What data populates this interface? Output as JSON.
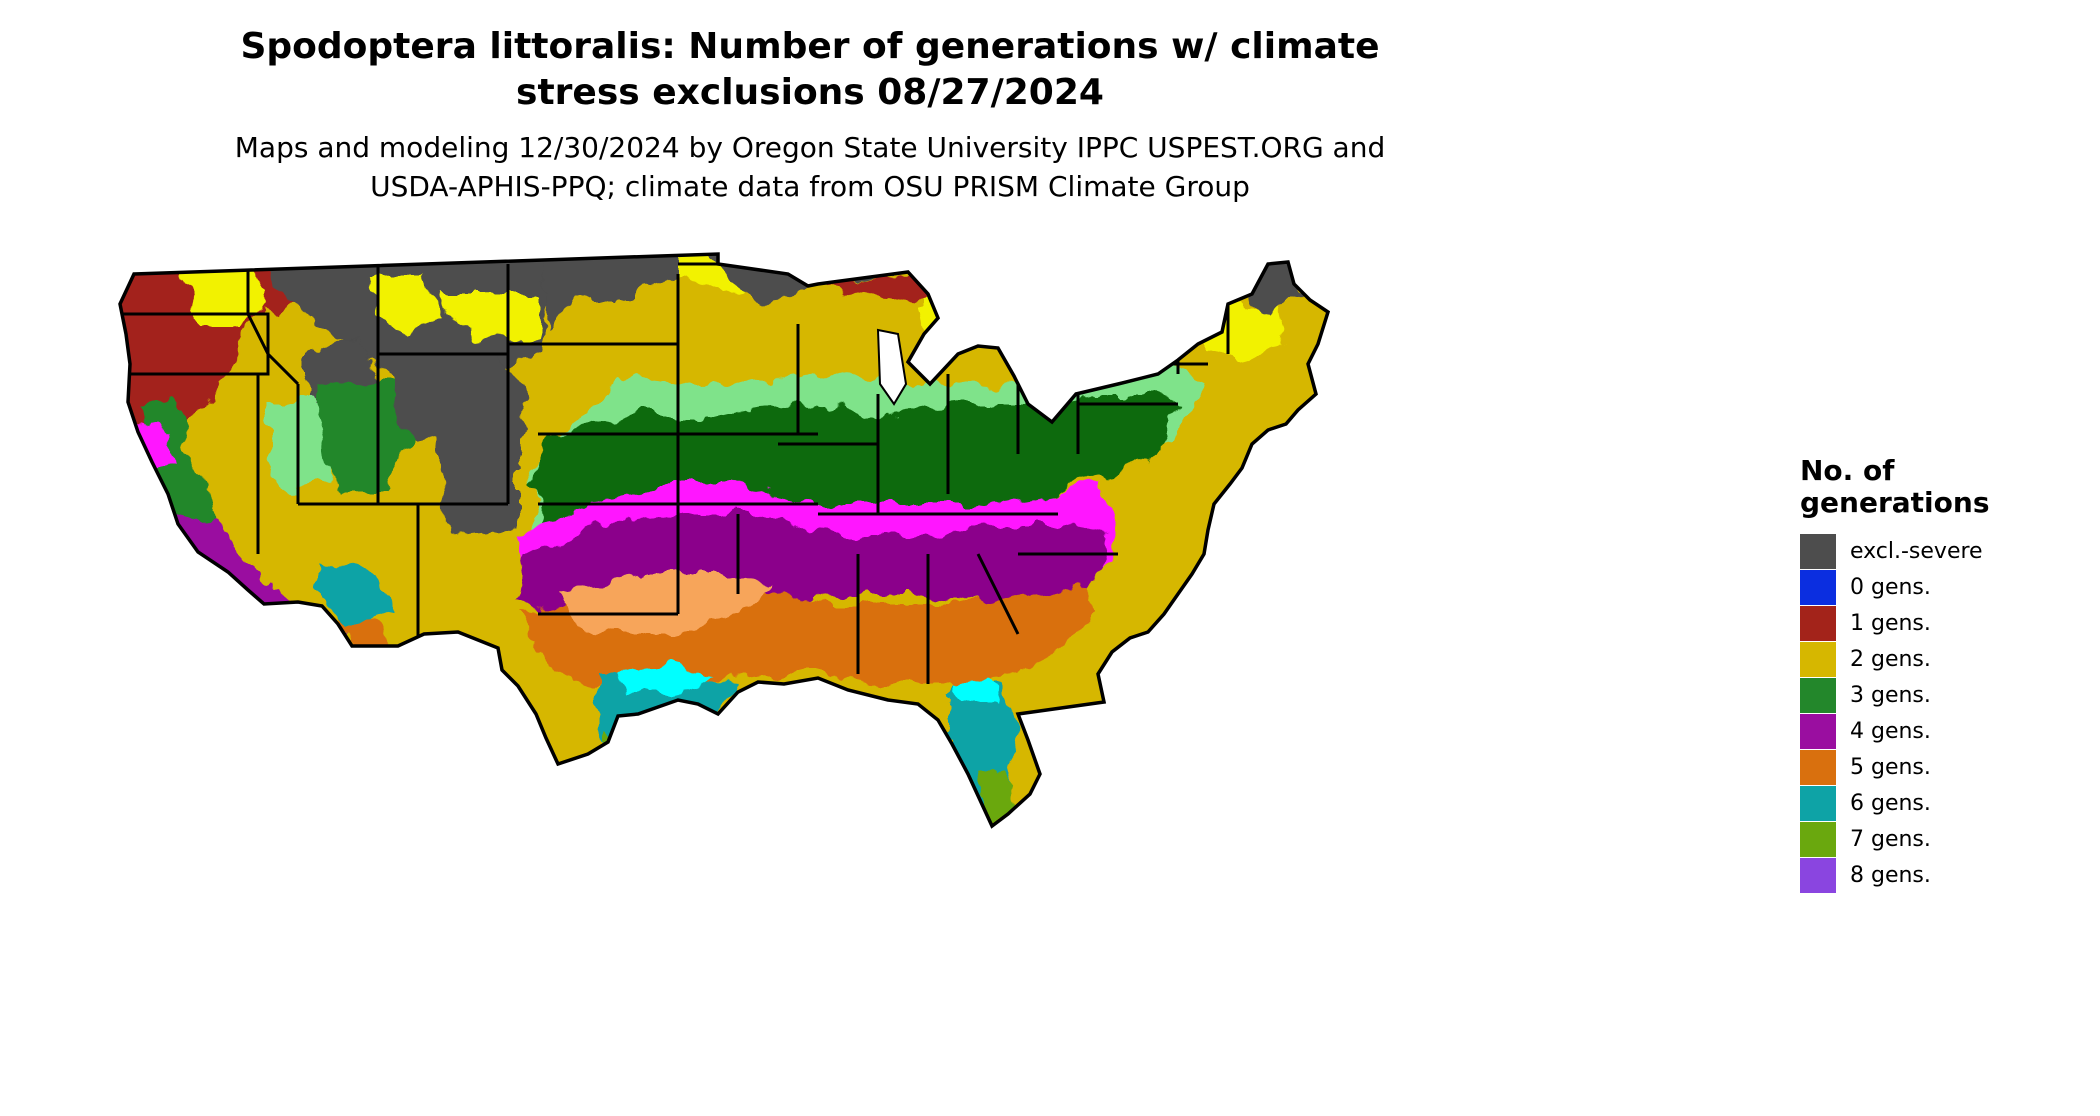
{
  "title": "Spodoptera littoralis: Number of generations w/ climate stress exclusions 08/27/2024",
  "subtitle": "Maps and modeling 12/30/2024 by Oregon State University IPPC USPEST.ORG and USDA-APHIS-PPQ; climate data from OSU PRISM Climate Group",
  "legend": {
    "title": "No. of generations",
    "items": [
      {
        "label": "excl.-severe",
        "color": "#4d4d4d"
      },
      {
        "label": "0 gens.",
        "color": "#0b2ee0"
      },
      {
        "label": "1 gens.",
        "color": "#a3231a"
      },
      {
        "label": "2 gens.",
        "color": "#d6b700"
      },
      {
        "label": "3 gens.",
        "color": "#23872b"
      },
      {
        "label": "4 gens.",
        "color": "#9a0ea0"
      },
      {
        "label": "5 gens.",
        "color": "#d9700e"
      },
      {
        "label": "6 gens.",
        "color": "#0ea3a6"
      },
      {
        "label": "7 gens.",
        "color": "#6aa80e"
      },
      {
        "label": "8 gens.",
        "color": "#8a45e0"
      }
    ]
  }
}
